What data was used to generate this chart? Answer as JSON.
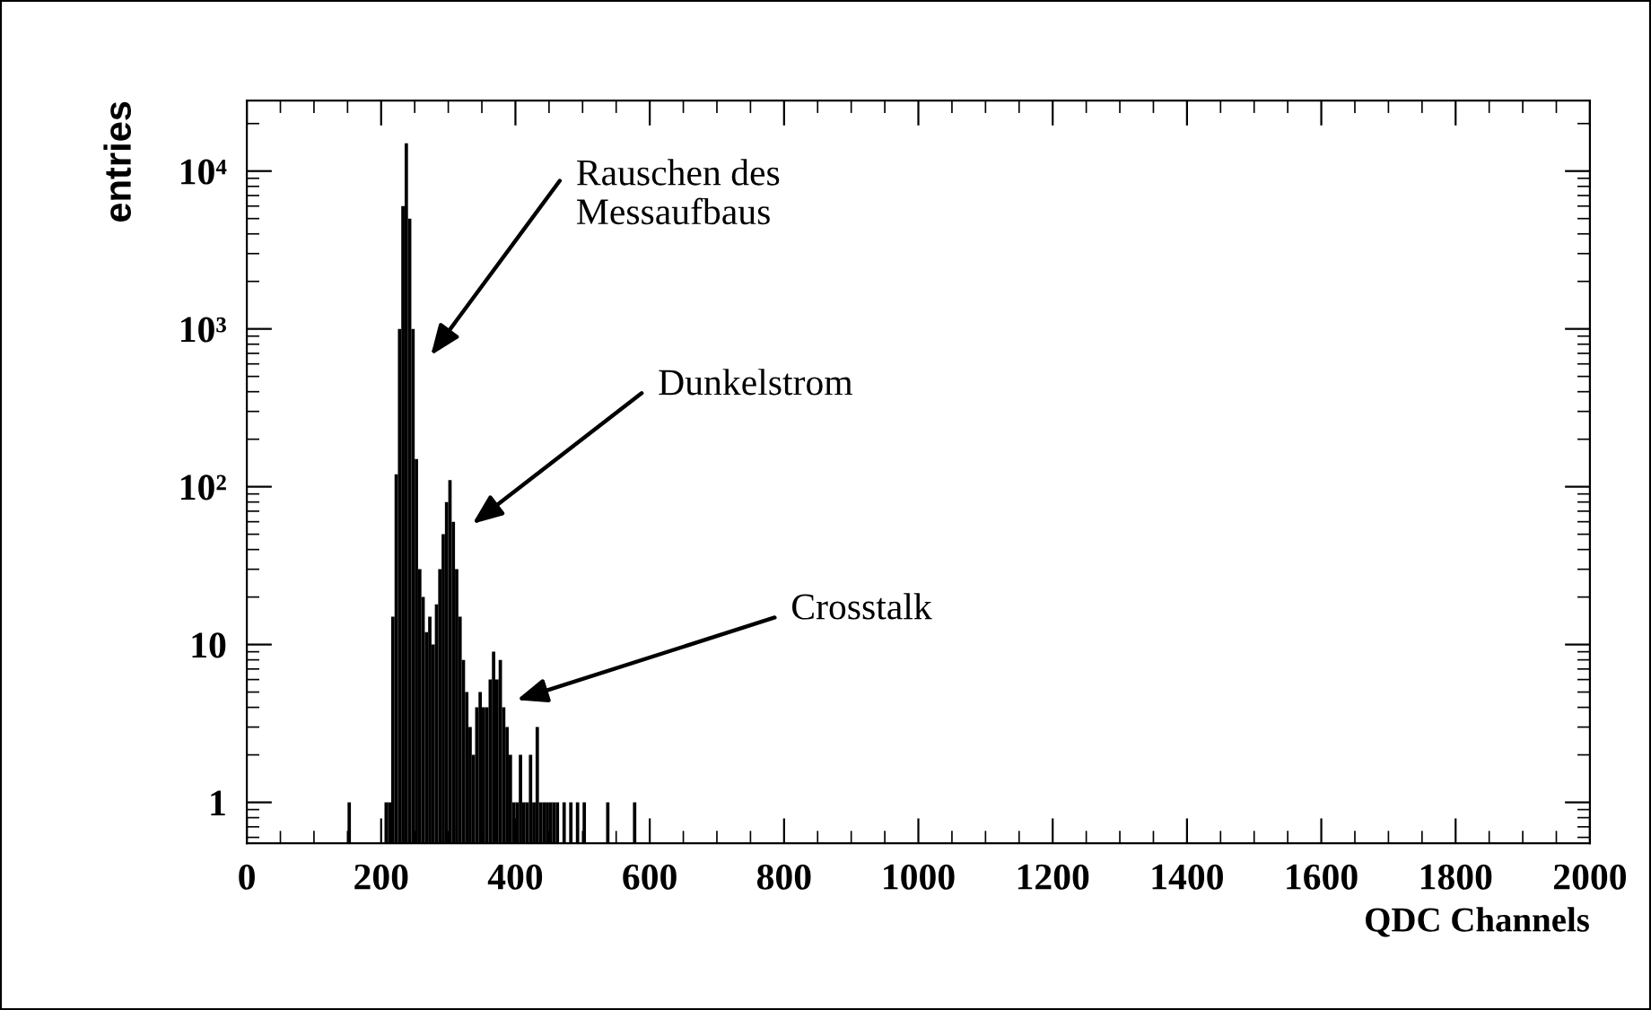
{
  "chart_data": {
    "type": "histogram",
    "xlabel": "QDC Channels",
    "ylabel": "entries",
    "color": "#000000",
    "log": "y",
    "bins": [
      145,
      150,
      155,
      160,
      165,
      170,
      175,
      180,
      185,
      190,
      195,
      200,
      205,
      210,
      215,
      220,
      225,
      230,
      235,
      240,
      245,
      250,
      255,
      260,
      265,
      270,
      275,
      280,
      285,
      290,
      295,
      300,
      305,
      310,
      315,
      320,
      325,
      330,
      335,
      340,
      345,
      350,
      355,
      360,
      365,
      370,
      375,
      380,
      385,
      390,
      395,
      400,
      405,
      410,
      415,
      420,
      425,
      430,
      435,
      440,
      445,
      450,
      455,
      460,
      465,
      470,
      475,
      480,
      485,
      490,
      495,
      500,
      505,
      510,
      515,
      520,
      525,
      530,
      535,
      540,
      545,
      550,
      555,
      560,
      565,
      570,
      575,
      580
    ],
    "values": [
      null,
      1,
      null,
      null,
      null,
      null,
      null,
      null,
      null,
      null,
      null,
      null,
      1,
      1,
      15,
      120,
      1000,
      6000,
      15000,
      5000,
      1000,
      150,
      30,
      20,
      12,
      15,
      10,
      18,
      30,
      50,
      80,
      110,
      60,
      30,
      15,
      8,
      5,
      3,
      2,
      4,
      5,
      4,
      4,
      6,
      9,
      6,
      8,
      4,
      3,
      2,
      1,
      1,
      2,
      1,
      1,
      2,
      1,
      3,
      1,
      1,
      1,
      1,
      1,
      1,
      null,
      1,
      null,
      1,
      null,
      1,
      null,
      1,
      null,
      null,
      null,
      null,
      null,
      null,
      1,
      null,
      null,
      null,
      null,
      null,
      null,
      null,
      1
    ],
    "xlim": [
      0,
      2000
    ],
    "xticks": [
      0,
      200,
      400,
      600,
      800,
      1000,
      1200,
      1400,
      1600,
      1800,
      2000
    ],
    "ylim": [
      0.55,
      28000
    ],
    "yticks": [
      {
        "value": 1,
        "label": "1"
      },
      {
        "value": 10,
        "label": "10"
      },
      {
        "value": 100,
        "label": "10²"
      },
      {
        "value": 1000,
        "label": "10³"
      },
      {
        "value": 10000,
        "label": "10⁴"
      }
    ],
    "annotations": [
      "Rauschen des\nMessaufbaus",
      "Dunkelstrom",
      "Crosstalk"
    ]
  }
}
